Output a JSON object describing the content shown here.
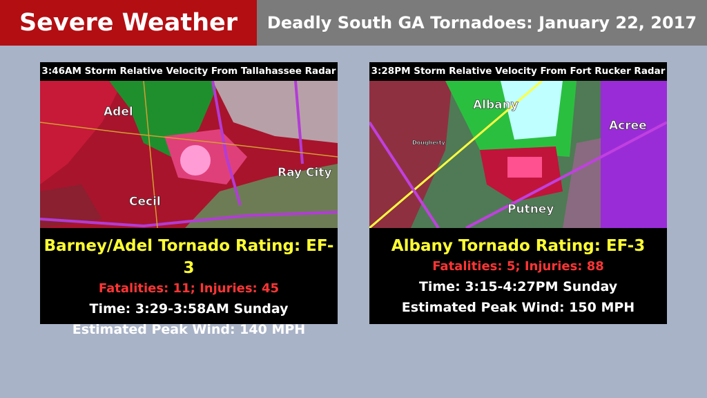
{
  "header": {
    "title": "Severe Weather",
    "subtitle": "Deadly South GA Tornadoes: January 22, 2017"
  },
  "panels": [
    {
      "caption": "3:46AM Storm Relative Velocity From Tallahassee Radar",
      "map_labels": [
        "Adel",
        "Cecil",
        "Ray City"
      ],
      "rating": "Barney/Adel Tornado Rating: EF-3",
      "casualties": "Fatalities: 11; Injuries: 45",
      "time": "Time: 3:29-3:58AM Sunday",
      "wind": "Estimated Peak Wind: 140 MPH"
    },
    {
      "caption": "3:28PM Storm Relative Velocity From Fort Rucker Radar",
      "map_labels": [
        "Albany",
        "Acree",
        "Putney",
        "Dougherty"
      ],
      "rating": "Albany Tornado Rating: EF-3",
      "casualties": "Fatalities: 5; Injuries: 88",
      "time": "Time: 3:15-4:27PM Sunday",
      "wind": "Estimated Peak Wind: 150 MPH"
    }
  ]
}
